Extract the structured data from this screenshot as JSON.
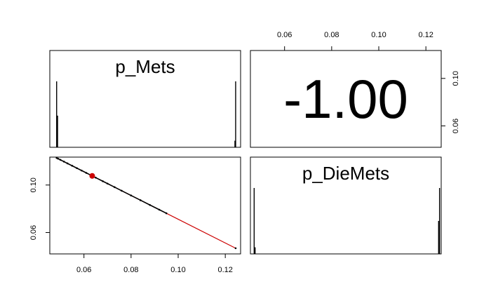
{
  "chart_data": {
    "type": "scatter-matrix",
    "variables": [
      "p_Mets",
      "p_DieMets"
    ],
    "correlation_text": "-1.00",
    "axis_ticks": {
      "p_Mets": [
        0.06,
        0.08,
        0.1,
        0.12
      ],
      "p_DieMets": [
        0.06,
        0.1
      ]
    },
    "tick_labels": {
      "p_Mets": [
        "0.06",
        "0.08",
        "0.10",
        "0.12"
      ],
      "p_DieMets": [
        "0.06",
        "0.10"
      ]
    },
    "ranges": {
      "p_Mets": [
        0.0455,
        0.1265
      ],
      "p_DieMets": [
        0.042,
        0.1235
      ]
    },
    "histograms": {
      "p_Mets": [
        {
          "x": 0.0484,
          "height": 1.0
        },
        {
          "x": 0.0488,
          "height": 0.48
        },
        {
          "x": 0.1244,
          "height": 1.0
        },
        {
          "x": 0.1241,
          "height": 0.1
        }
      ],
      "p_DieMets": [
        {
          "x": 0.044,
          "height": 0.1
        },
        {
          "x": 0.0436,
          "height": 1.0
        },
        {
          "x": 0.1228,
          "height": 1.0
        },
        {
          "x": 0.1224,
          "height": 0.5
        }
      ]
    },
    "scatter": {
      "x_var": "p_Mets",
      "y_var": "p_DieMets",
      "points": [
        {
          "x": 0.0484,
          "y": 0.1228
        },
        {
          "x": 0.049,
          "y": 0.1222
        },
        {
          "x": 0.05,
          "y": 0.1212
        },
        {
          "x": 0.0515,
          "y": 0.1197
        },
        {
          "x": 0.053,
          "y": 0.1182
        },
        {
          "x": 0.055,
          "y": 0.1162
        },
        {
          "x": 0.057,
          "y": 0.1142
        },
        {
          "x": 0.059,
          "y": 0.1122
        },
        {
          "x": 0.061,
          "y": 0.1102
        },
        {
          "x": 0.065,
          "y": 0.1062
        },
        {
          "x": 0.068,
          "y": 0.1032
        },
        {
          "x": 0.07,
          "y": 0.1012
        },
        {
          "x": 0.073,
          "y": 0.0982
        },
        {
          "x": 0.076,
          "y": 0.0952
        },
        {
          "x": 0.08,
          "y": 0.0912
        },
        {
          "x": 0.084,
          "y": 0.0872
        },
        {
          "x": 0.088,
          "y": 0.0832
        },
        {
          "x": 0.092,
          "y": 0.0792
        },
        {
          "x": 0.095,
          "y": 0.0762
        },
        {
          "x": 0.1244,
          "y": 0.0468
        }
      ],
      "mean_point": {
        "x": 0.0635,
        "y": 0.1077
      },
      "fit_line": {
        "x1": 0.0484,
        "y1": 0.1228,
        "x2": 0.1244,
        "y2": 0.0468
      },
      "point_color": "#000000",
      "mean_color": "#cc0000",
      "fit_color": "#cc0000"
    }
  }
}
